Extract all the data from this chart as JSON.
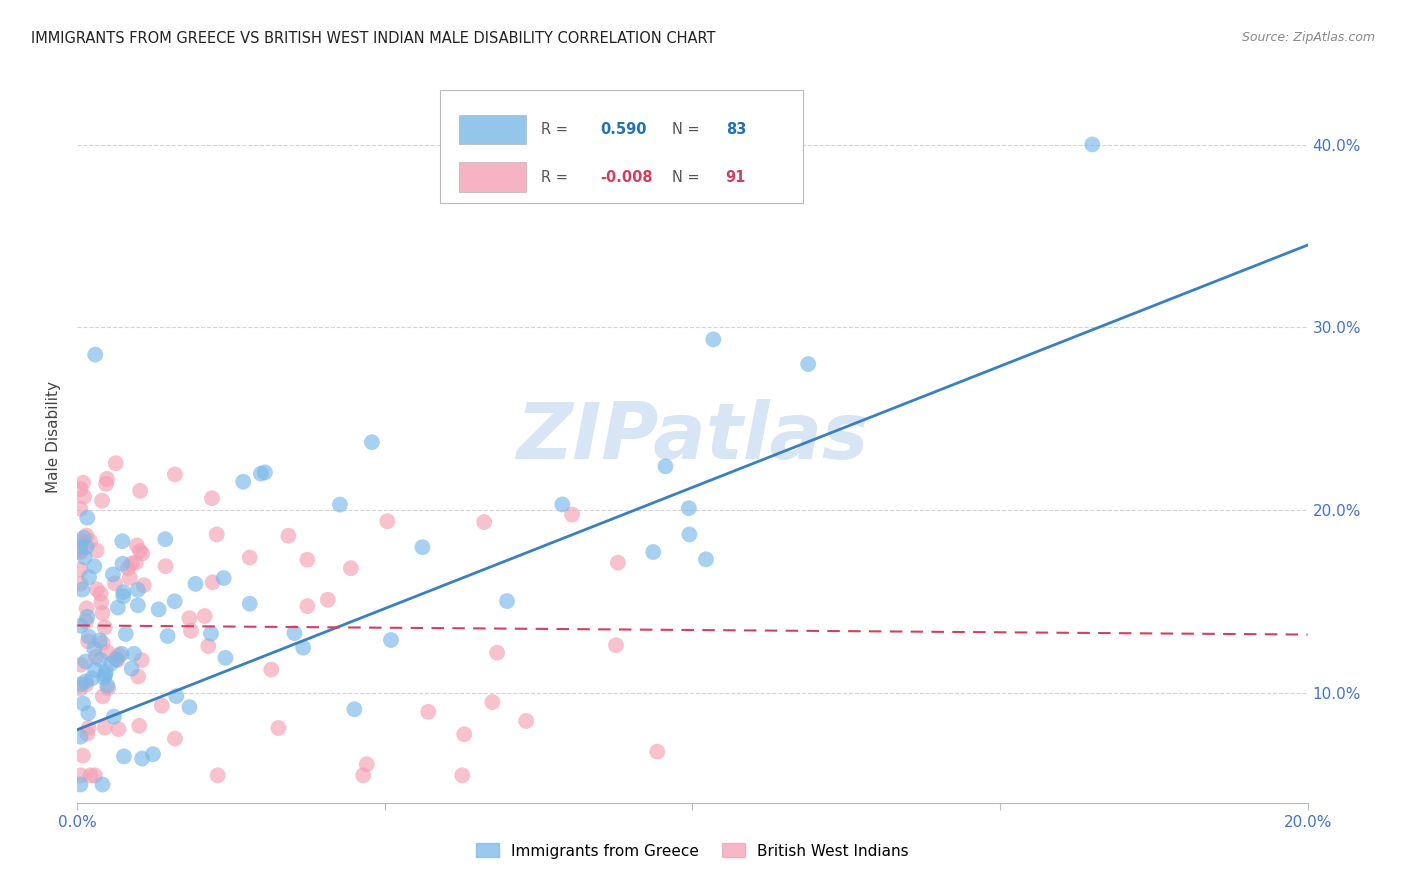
{
  "title": "IMMIGRANTS FROM GREECE VS BRITISH WEST INDIAN MALE DISABILITY CORRELATION CHART",
  "source": "Source: ZipAtlas.com",
  "ylabel": "Male Disability",
  "xlim": [
    0.0,
    0.2
  ],
  "ylim": [
    0.04,
    0.44
  ],
  "xticks": [
    0.0,
    0.05,
    0.1,
    0.15,
    0.2
  ],
  "xtick_labels": [
    "0.0%",
    "",
    "",
    "",
    "20.0%"
  ],
  "yticks_right": [
    0.1,
    0.2,
    0.3,
    0.4
  ],
  "ytick_right_labels": [
    "10.0%",
    "20.0%",
    "30.0%",
    "40.0%"
  ],
  "greece_color": "#7ab8e8",
  "bwi_color": "#f4a0b5",
  "greece_line_color": "#3a7fc1",
  "bwi_line_color": "#d04060",
  "background_color": "#ffffff",
  "grid_color": "#d0d0d0",
  "watermark": "ZIPatlas",
  "watermark_color": "#c8daf0",
  "greece_R": 0.59,
  "greece_N": 83,
  "bwi_R": -0.008,
  "bwi_N": 91,
  "greece_line_x0": 0.0,
  "greece_line_y0": 0.08,
  "greece_line_x1": 0.2,
  "greece_line_y1": 0.345,
  "bwi_line_x0": 0.0,
  "bwi_line_y0": 0.137,
  "bwi_line_x1": 0.2,
  "bwi_line_y1": 0.132
}
